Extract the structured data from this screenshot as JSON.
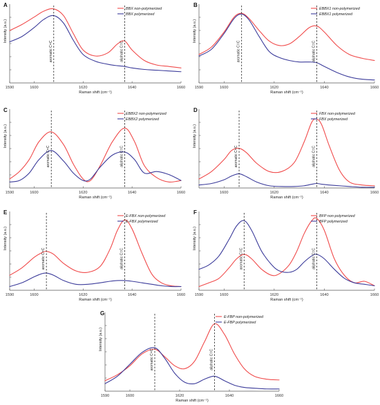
{
  "figure": {
    "panels_order": [
      "A",
      "B",
      "C",
      "D",
      "E",
      "F",
      "G"
    ]
  },
  "colors": {
    "non_polymerized": "#f04a4a",
    "polymerized": "#3b3b9a",
    "axis": "#555555",
    "marker": "#222222"
  },
  "chart_data": [
    {
      "panel": "A",
      "type": "line",
      "xlabel": "Raman shift (cm⁻¹)",
      "ylabel": "Intensity (a.u.)",
      "xlim": [
        1590,
        1660
      ],
      "ylim": [
        0,
        1.0
      ],
      "xticks": [
        1590,
        1600,
        1620,
        1640,
        1660
      ],
      "legend_position": "top-right",
      "markers": [
        {
          "x": 1608,
          "label": "aromatic C=C"
        },
        {
          "x": 1637,
          "label": "aliphatic C=C"
        }
      ],
      "series": [
        {
          "name": "BBX non-polymerized",
          "color": "#f04a4a",
          "x": [
            1590,
            1595,
            1600,
            1604,
            1608,
            1612,
            1616,
            1620,
            1625,
            1630,
            1634,
            1637,
            1640,
            1645,
            1650,
            1655,
            1660
          ],
          "y": [
            0.7,
            0.78,
            0.88,
            0.96,
            0.99,
            0.9,
            0.66,
            0.44,
            0.36,
            0.4,
            0.52,
            0.56,
            0.44,
            0.3,
            0.24,
            0.22,
            0.2
          ]
        },
        {
          "name": "BBX polymerized",
          "color": "#3b3b9a",
          "x": [
            1590,
            1595,
            1600,
            1604,
            1608,
            1612,
            1616,
            1620,
            1625,
            1630,
            1634,
            1637,
            1640,
            1645,
            1650,
            1655,
            1660
          ],
          "y": [
            0.55,
            0.62,
            0.74,
            0.85,
            0.9,
            0.8,
            0.57,
            0.38,
            0.29,
            0.25,
            0.23,
            0.22,
            0.2,
            0.18,
            0.17,
            0.16,
            0.15
          ]
        }
      ]
    },
    {
      "panel": "B",
      "type": "line",
      "xlabel": "Raman shift (cm⁻¹)",
      "ylabel": "Intensity (a.u.)",
      "xlim": [
        1590,
        1660
      ],
      "ylim": [
        0,
        1.0
      ],
      "xticks": [
        1590,
        1600,
        1620,
        1640,
        1660
      ],
      "legend_position": "top-right",
      "markers": [
        {
          "x": 1607,
          "label": "aromatic C=C"
        },
        {
          "x": 1637,
          "label": "aliphatic C=C"
        }
      ],
      "series": [
        {
          "name": "EBBX1 non-polymerized",
          "color": "#f04a4a",
          "x": [
            1590,
            1595,
            1600,
            1604,
            1607,
            1610,
            1614,
            1618,
            1622,
            1626,
            1630,
            1634,
            1637,
            1640,
            1645,
            1650,
            1655,
            1660
          ],
          "y": [
            0.38,
            0.48,
            0.68,
            0.88,
            0.93,
            0.86,
            0.7,
            0.56,
            0.5,
            0.52,
            0.62,
            0.74,
            0.76,
            0.68,
            0.5,
            0.38,
            0.33,
            0.3
          ]
        },
        {
          "name": "EBBX1 polymerized",
          "color": "#3b3b9a",
          "x": [
            1590,
            1595,
            1600,
            1604,
            1607,
            1610,
            1614,
            1618,
            1622,
            1626,
            1630,
            1634,
            1637,
            1640,
            1645,
            1650,
            1655,
            1660
          ],
          "y": [
            0.36,
            0.45,
            0.66,
            0.86,
            0.92,
            0.84,
            0.62,
            0.42,
            0.34,
            0.3,
            0.28,
            0.28,
            0.27,
            0.22,
            0.14,
            0.08,
            0.05,
            0.04
          ]
        }
      ]
    },
    {
      "panel": "C",
      "type": "line",
      "xlabel": "Raman shift (cm⁻¹)",
      "ylabel": "Intensity (a.u.)",
      "xlim": [
        1590,
        1660
      ],
      "ylim": [
        0,
        1.0
      ],
      "xticks": [
        1590,
        1600,
        1620,
        1640,
        1660
      ],
      "legend_position": "top-right",
      "markers": [
        {
          "x": 1607,
          "label": "aromatic C=C"
        },
        {
          "x": 1637,
          "label": "aliphatic C=C"
        }
      ],
      "series": [
        {
          "name": "EBBX2 non-polymerized",
          "color": "#f04a4a",
          "x": [
            1590,
            1594,
            1598,
            1602,
            1607,
            1612,
            1616,
            1620,
            1623,
            1627,
            1632,
            1637,
            1641,
            1645,
            1650,
            1655,
            1660
          ],
          "y": [
            0.12,
            0.22,
            0.38,
            0.62,
            0.75,
            0.58,
            0.32,
            0.12,
            0.1,
            0.3,
            0.62,
            0.8,
            0.62,
            0.3,
            0.14,
            0.08,
            0.1
          ]
        },
        {
          "name": "EBBX2 polymerized",
          "color": "#3b3b9a",
          "x": [
            1590,
            1594,
            1598,
            1602,
            1607,
            1612,
            1616,
            1620,
            1623,
            1627,
            1632,
            1637,
            1641,
            1645,
            1650,
            1655,
            1660
          ],
          "y": [
            0.08,
            0.1,
            0.2,
            0.38,
            0.5,
            0.36,
            0.2,
            0.1,
            0.12,
            0.28,
            0.44,
            0.48,
            0.38,
            0.2,
            0.22,
            0.18,
            0.1
          ]
        }
      ]
    },
    {
      "panel": "D",
      "type": "line",
      "xlabel": "Raman shift (cm⁻¹)",
      "ylabel": "Intensity (a.u.)",
      "xlim": [
        1590,
        1660
      ],
      "ylim": [
        0,
        1.0
      ],
      "xticks": [
        1600,
        1620,
        1640,
        1660
      ],
      "legend_position": "top-right",
      "markers": [
        {
          "x": 1606,
          "label": "aromatic C=C"
        },
        {
          "x": 1637,
          "label": "aliphatic C=C"
        }
      ],
      "series": [
        {
          "name": "FBX non-polymerized",
          "color": "#f04a4a",
          "x": [
            1590,
            1595,
            1600,
            1603,
            1606,
            1609,
            1613,
            1618,
            1623,
            1628,
            1632,
            1635,
            1637,
            1639,
            1642,
            1646,
            1650,
            1655,
            1660
          ],
          "y": [
            0.12,
            0.22,
            0.38,
            0.5,
            0.53,
            0.47,
            0.33,
            0.22,
            0.22,
            0.34,
            0.62,
            0.88,
            0.92,
            0.84,
            0.56,
            0.24,
            0.08,
            0.04,
            0.03
          ]
        },
        {
          "name": "FBX polymerized",
          "color": "#3b3b9a",
          "x": [
            1590,
            1595,
            1600,
            1603,
            1606,
            1609,
            1613,
            1618,
            1623,
            1628,
            1632,
            1635,
            1637,
            1639,
            1642,
            1646,
            1650,
            1655,
            1660
          ],
          "y": [
            0.04,
            0.06,
            0.11,
            0.16,
            0.19,
            0.15,
            0.08,
            0.03,
            0.02,
            0.02,
            0.03,
            0.05,
            0.06,
            0.05,
            0.04,
            0.03,
            0.02,
            0.01,
            0.01
          ]
        }
      ]
    },
    {
      "panel": "E",
      "type": "line",
      "xlabel": "Raman shift (cm⁻¹)",
      "ylabel": "Intensity (a.u.)",
      "xlim": [
        1590,
        1660
      ],
      "ylim": [
        0,
        1.0
      ],
      "xticks": [
        1590,
        1600,
        1620,
        1640,
        1660
      ],
      "legend_position": "top-right",
      "markers": [
        {
          "x": 1605,
          "label": "aromatic C=C"
        },
        {
          "x": 1637,
          "label": "aliphatic C=C"
        }
      ],
      "series": [
        {
          "name": "E-FBX non-polymerized",
          "color": "#f04a4a",
          "x": [
            1590,
            1595,
            1600,
            1603,
            1605,
            1608,
            1612,
            1617,
            1622,
            1627,
            1631,
            1634,
            1637,
            1640,
            1644,
            1648,
            1652,
            1656,
            1660
          ],
          "y": [
            0.2,
            0.3,
            0.44,
            0.5,
            0.52,
            0.48,
            0.36,
            0.26,
            0.24,
            0.32,
            0.55,
            0.8,
            0.94,
            0.82,
            0.5,
            0.22,
            0.1,
            0.06,
            0.05
          ]
        },
        {
          "name": "E-FBX polymerized",
          "color": "#3b3b9a",
          "x": [
            1590,
            1595,
            1600,
            1603,
            1605,
            1608,
            1612,
            1617,
            1622,
            1627,
            1631,
            1634,
            1637,
            1640,
            1644,
            1648,
            1652,
            1656,
            1660
          ],
          "y": [
            0.05,
            0.1,
            0.18,
            0.22,
            0.23,
            0.2,
            0.13,
            0.08,
            0.08,
            0.1,
            0.12,
            0.13,
            0.13,
            0.12,
            0.1,
            0.08,
            0.06,
            0.05,
            0.05
          ]
        }
      ]
    },
    {
      "panel": "F",
      "type": "line",
      "xlabel": "Raman shift (cm⁻¹)",
      "ylabel": "Intensity (a.u.)",
      "xlim": [
        1590,
        1660
      ],
      "ylim": [
        0,
        1.0
      ],
      "xticks": [
        1590,
        1600,
        1620,
        1640,
        1660
      ],
      "legend_position": "top-right",
      "markers": [
        {
          "x": 1608,
          "label": "aromatic C=C"
        },
        {
          "x": 1637,
          "label": "aliphatic C=C"
        }
      ],
      "series": [
        {
          "name": "BFP non-polymerized",
          "color": "#f04a4a",
          "x": [
            1590,
            1594,
            1598,
            1602,
            1605,
            1608,
            1611,
            1615,
            1619,
            1622,
            1626,
            1629,
            1632,
            1635,
            1637,
            1640,
            1644,
            1648,
            1652,
            1656,
            1660
          ],
          "y": [
            0.05,
            0.1,
            0.16,
            0.3,
            0.42,
            0.48,
            0.42,
            0.28,
            0.2,
            0.22,
            0.34,
            0.52,
            0.76,
            0.93,
            0.96,
            0.8,
            0.42,
            0.2,
            0.1,
            0.12,
            0.06
          ]
        },
        {
          "name": "BFP polymerized",
          "color": "#3b3b9a",
          "x": [
            1590,
            1594,
            1598,
            1602,
            1605,
            1608,
            1611,
            1615,
            1619,
            1622,
            1626,
            1629,
            1632,
            1635,
            1637,
            1640,
            1644,
            1648,
            1652,
            1656,
            1660
          ],
          "y": [
            0.28,
            0.34,
            0.46,
            0.68,
            0.86,
            0.93,
            0.8,
            0.52,
            0.34,
            0.26,
            0.24,
            0.28,
            0.38,
            0.46,
            0.48,
            0.42,
            0.28,
            0.16,
            0.1,
            0.08,
            0.06
          ]
        }
      ]
    },
    {
      "panel": "G",
      "type": "line",
      "xlabel": "Raman shift (cm⁻¹)",
      "ylabel": "Intensity (a.u.)",
      "xlim": [
        1590,
        1660
      ],
      "ylim": [
        0,
        1.0
      ],
      "xticks": [
        1590,
        1600,
        1620,
        1640,
        1660
      ],
      "legend_position": "top-right",
      "markers": [
        {
          "x": 1610,
          "label": "aromatic C=C"
        },
        {
          "x": 1634,
          "label": "aliphatic C=C"
        }
      ],
      "series": [
        {
          "name": "E-FBP non-polymerized",
          "color": "#f04a4a",
          "x": [
            1590,
            1595,
            1600,
            1605,
            1610,
            1614,
            1618,
            1622,
            1626,
            1630,
            1634,
            1638,
            1642,
            1646,
            1650,
            1655,
            1660
          ],
          "y": [
            0.14,
            0.22,
            0.34,
            0.5,
            0.56,
            0.46,
            0.34,
            0.3,
            0.4,
            0.66,
            0.9,
            0.76,
            0.5,
            0.3,
            0.2,
            0.16,
            0.15
          ]
        },
        {
          "name": "E-FBP polymerized",
          "color": "#3b3b9a",
          "x": [
            1590,
            1595,
            1600,
            1605,
            1610,
            1614,
            1618,
            1622,
            1626,
            1630,
            1634,
            1638,
            1642,
            1646,
            1650,
            1655,
            1660
          ],
          "y": [
            0.1,
            0.2,
            0.36,
            0.52,
            0.58,
            0.44,
            0.24,
            0.12,
            0.1,
            0.16,
            0.2,
            0.14,
            0.08,
            0.05,
            0.04,
            0.03,
            0.03
          ]
        }
      ]
    }
  ]
}
